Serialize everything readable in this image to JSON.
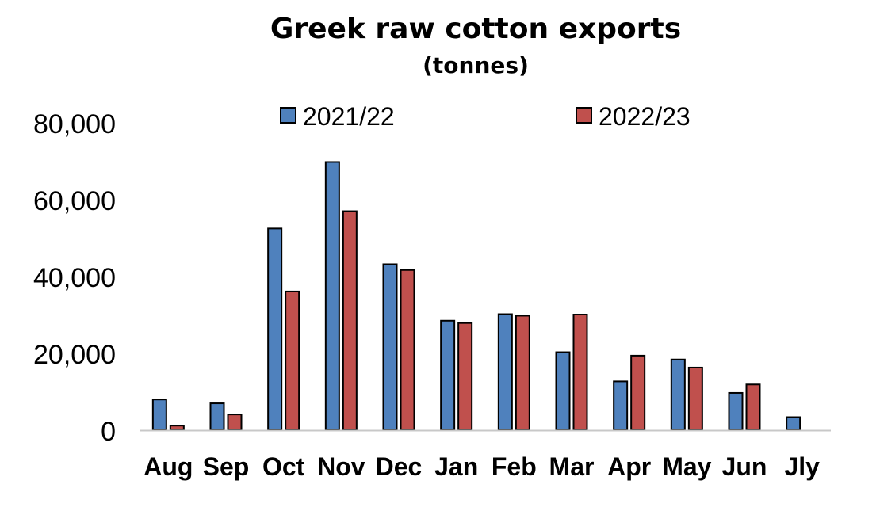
{
  "chart_data": {
    "type": "bar",
    "title": "Greek raw cotton exports",
    "subtitle": "(tonnes)",
    "categories": [
      "Aug",
      "Sep",
      "Oct",
      "Nov",
      "Dec",
      "Jan",
      "Feb",
      "Mar",
      "Apr",
      "May",
      "Jun",
      "Jly"
    ],
    "series": [
      {
        "name": "2021/22",
        "color": "#4F81BD",
        "values": [
          8000,
          7000,
          52500,
          69800,
          43200,
          28500,
          30200,
          20300,
          12700,
          18400,
          9700,
          3400
        ]
      },
      {
        "name": "2022/23",
        "color": "#C0504D",
        "values": [
          1200,
          4100,
          36100,
          57000,
          41700,
          27900,
          29800,
          30100,
          19400,
          16300,
          11900,
          null
        ]
      }
    ],
    "ylim": [
      0,
      80000
    ],
    "yticks": [
      "0",
      "20,000",
      "40,000",
      "60,000",
      "80,000"
    ],
    "ytick_values": [
      0,
      20000,
      40000,
      60000,
      80000
    ],
    "grid": false,
    "legend": "top-center"
  }
}
